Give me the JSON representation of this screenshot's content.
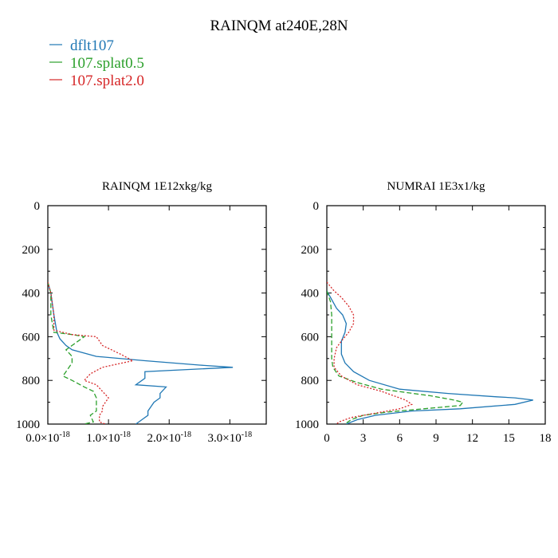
{
  "figure": {
    "title": "RAINQM at240E,28N"
  },
  "legend": {
    "entries": [
      {
        "label": "dflt107",
        "color": "#1f77b4",
        "dash": "solid"
      },
      {
        "label": "107.splat0.5",
        "color": "#2ca02c",
        "dash": "dashed"
      },
      {
        "label": "107.splat2.0",
        "color": "#d62728",
        "dash": "dotted"
      }
    ]
  },
  "chart_data": [
    {
      "type": "line",
      "title": "RAINQM  1E12xkg/kg",
      "xlim": [
        0,
        3.6
      ],
      "ylim": [
        1000,
        0
      ],
      "x_ticks": [
        0,
        1,
        2,
        3
      ],
      "x_tick_labels": [
        {
          "mantissa": "0.0×10",
          "exp": "-18"
        },
        {
          "mantissa": "1.0×10",
          "exp": "-18"
        },
        {
          "mantissa": "2.0×10",
          "exp": "-18"
        },
        {
          "mantissa": "3.0×10",
          "exp": "-18"
        }
      ],
      "y_ticks": [
        0,
        200,
        400,
        600,
        800,
        1000
      ],
      "y_tick_labels": [
        "0",
        "200",
        "400",
        "600",
        "800",
        "1000"
      ],
      "series": [
        {
          "name": "dflt107",
          "color": "#1f77b4",
          "dash": "solid",
          "points": [
            [
              0.0,
              350
            ],
            [
              0.05,
              400
            ],
            [
              0.1,
              500
            ],
            [
              0.15,
              580
            ],
            [
              0.2,
              610
            ],
            [
              0.3,
              640
            ],
            [
              0.4,
              660
            ],
            [
              0.8,
              690
            ],
            [
              1.6,
              710
            ],
            [
              2.5,
              730
            ],
            [
              3.05,
              740
            ],
            [
              1.6,
              760
            ],
            [
              1.6,
              790
            ],
            [
              1.45,
              820
            ],
            [
              1.95,
              830
            ],
            [
              1.85,
              860
            ],
            [
              1.85,
              880
            ],
            [
              1.75,
              900
            ],
            [
              1.65,
              940
            ],
            [
              1.65,
              960
            ],
            [
              1.55,
              980
            ],
            [
              1.45,
              1000
            ]
          ]
        },
        {
          "name": "107.splat0.5",
          "color": "#2ca02c",
          "dash": "dashed",
          "points": [
            [
              0.0,
              350
            ],
            [
              0.05,
              400
            ],
            [
              0.05,
              500
            ],
            [
              0.1,
              580
            ],
            [
              0.4,
              590
            ],
            [
              0.6,
              600
            ],
            [
              0.4,
              640
            ],
            [
              0.3,
              660
            ],
            [
              0.4,
              690
            ],
            [
              0.4,
              720
            ],
            [
              0.3,
              760
            ],
            [
              0.25,
              780
            ],
            [
              0.4,
              800
            ],
            [
              0.6,
              830
            ],
            [
              0.75,
              850
            ],
            [
              0.8,
              880
            ],
            [
              0.8,
              910
            ],
            [
              0.8,
              940
            ],
            [
              0.7,
              960
            ],
            [
              0.75,
              990
            ],
            [
              0.6,
              1000
            ]
          ]
        },
        {
          "name": "107.splat2.0",
          "color": "#d62728",
          "dash": "dotted",
          "points": [
            [
              0.0,
              350
            ],
            [
              0.05,
              400
            ],
            [
              0.1,
              500
            ],
            [
              0.1,
              570
            ],
            [
              0.4,
              590
            ],
            [
              0.8,
              600
            ],
            [
              0.9,
              640
            ],
            [
              1.2,
              680
            ],
            [
              1.4,
              710
            ],
            [
              0.9,
              740
            ],
            [
              0.7,
              770
            ],
            [
              0.6,
              800
            ],
            [
              0.8,
              820
            ],
            [
              0.9,
              850
            ],
            [
              1.0,
              880
            ],
            [
              0.9,
              920
            ],
            [
              0.9,
              940
            ],
            [
              0.85,
              960
            ],
            [
              0.85,
              990
            ],
            [
              0.95,
              1000
            ]
          ]
        }
      ]
    },
    {
      "type": "line",
      "title": "NUMRAI  1E3x1/kg",
      "xlim": [
        0,
        18
      ],
      "ylim": [
        1000,
        0
      ],
      "x_ticks": [
        0,
        3,
        6,
        9,
        12,
        15,
        18
      ],
      "x_tick_labels": [
        "0",
        "3",
        "6",
        "9",
        "12",
        "15",
        "18"
      ],
      "y_ticks": [
        0,
        200,
        400,
        600,
        800,
        1000
      ],
      "y_tick_labels": [
        "0",
        "200",
        "400",
        "600",
        "800",
        "1000"
      ],
      "series": [
        {
          "name": "dflt107",
          "color": "#1f77b4",
          "dash": "solid",
          "points": [
            [
              0.0,
              390
            ],
            [
              0.3,
              420
            ],
            [
              0.8,
              470
            ],
            [
              1.3,
              500
            ],
            [
              1.6,
              540
            ],
            [
              1.5,
              580
            ],
            [
              1.2,
              620
            ],
            [
              1.2,
              680
            ],
            [
              1.5,
              720
            ],
            [
              2.2,
              760
            ],
            [
              3.5,
              800
            ],
            [
              6.0,
              840
            ],
            [
              10.0,
              860
            ],
            [
              14.0,
              875
            ],
            [
              15.5,
              880
            ],
            [
              17.0,
              890
            ],
            [
              15.5,
              910
            ],
            [
              11.0,
              930
            ],
            [
              7.0,
              940
            ],
            [
              4.0,
              960
            ],
            [
              2.5,
              980
            ],
            [
              1.6,
              1000
            ]
          ]
        },
        {
          "name": "107.splat0.5",
          "color": "#2ca02c",
          "dash": "dashed",
          "points": [
            [
              0.0,
              390
            ],
            [
              0.3,
              440
            ],
            [
              0.4,
              500
            ],
            [
              0.4,
              600
            ],
            [
              0.4,
              700
            ],
            [
              0.5,
              740
            ],
            [
              1.0,
              780
            ],
            [
              2.5,
              810
            ],
            [
              4.5,
              840
            ],
            [
              8.5,
              870
            ],
            [
              10.5,
              890
            ],
            [
              11.2,
              900
            ],
            [
              11.0,
              915
            ],
            [
              8.0,
              930
            ],
            [
              5.0,
              945
            ],
            [
              3.0,
              960
            ],
            [
              2.0,
              980
            ],
            [
              1.5,
              1000
            ]
          ]
        },
        {
          "name": "107.splat2.0",
          "color": "#d62728",
          "dash": "dotted",
          "points": [
            [
              0.0,
              350
            ],
            [
              0.6,
              390
            ],
            [
              1.2,
              420
            ],
            [
              1.8,
              460
            ],
            [
              2.2,
              500
            ],
            [
              2.2,
              540
            ],
            [
              1.8,
              580
            ],
            [
              1.2,
              620
            ],
            [
              0.8,
              650
            ],
            [
              0.6,
              700
            ],
            [
              0.6,
              740
            ],
            [
              1.2,
              780
            ],
            [
              2.5,
              820
            ],
            [
              4.5,
              850
            ],
            [
              5.5,
              870
            ],
            [
              6.5,
              890
            ],
            [
              7.0,
              910
            ],
            [
              6.0,
              930
            ],
            [
              4.0,
              950
            ],
            [
              2.0,
              970
            ],
            [
              1.0,
              990
            ],
            [
              0.8,
              1000
            ]
          ]
        }
      ]
    }
  ]
}
